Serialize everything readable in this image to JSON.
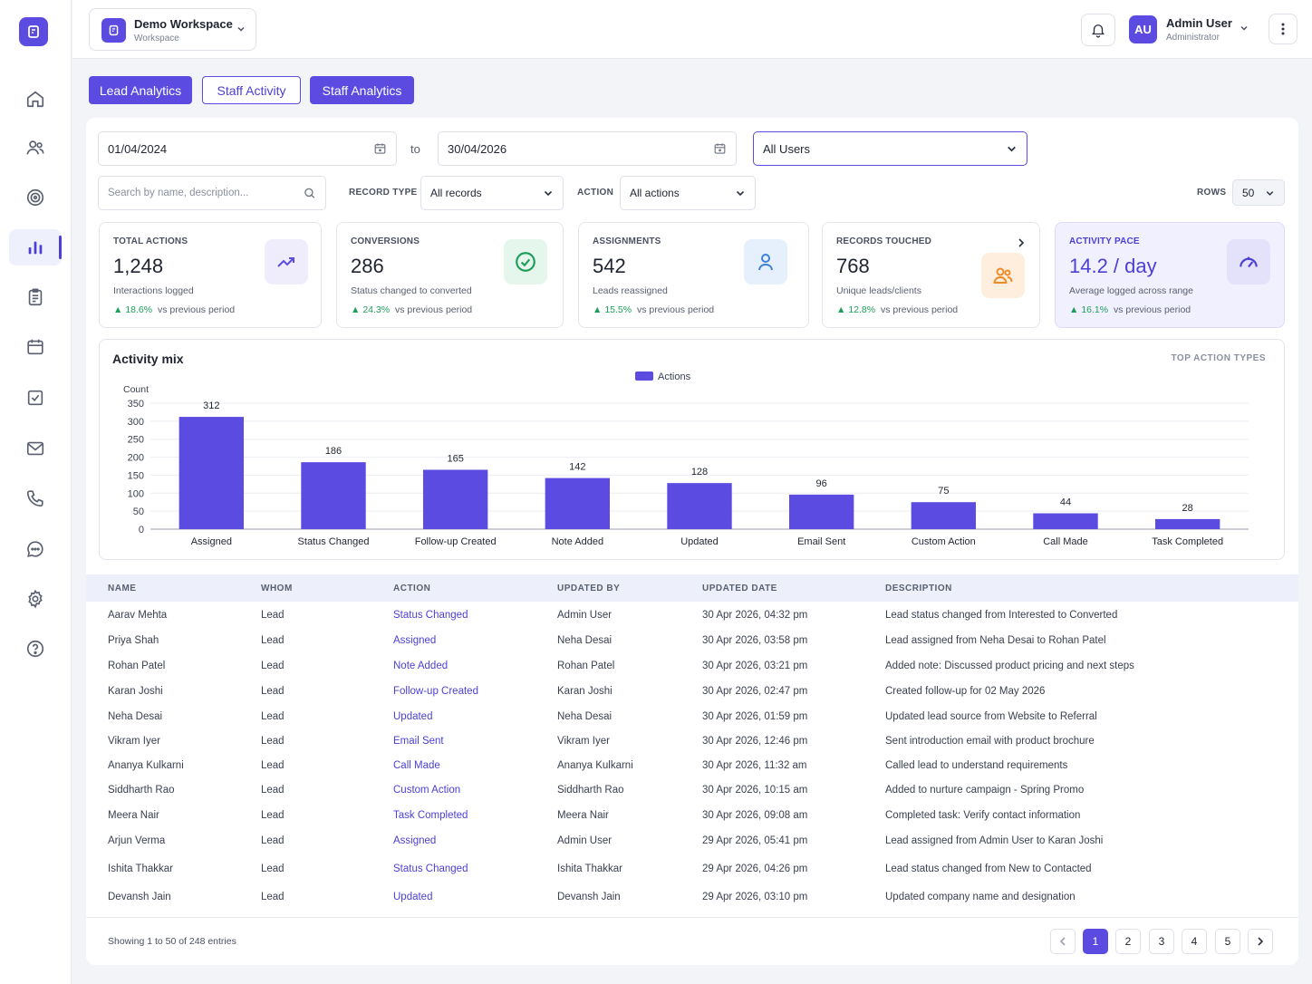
{
  "workspace": {
    "name": "Demo Workspace",
    "subtitle": "Workspace"
  },
  "user": {
    "initials": "AU",
    "name": "Admin User",
    "role": "Administrator"
  },
  "sidebar": {
    "items": [
      "home-icon",
      "users-icon",
      "target-icon",
      "analytics-icon",
      "clipboard-icon",
      "calendar-icon",
      "checkbox-icon",
      "mail-icon",
      "phone-icon",
      "chat-icon",
      "settings-icon",
      "help-icon"
    ],
    "active": "analytics-icon"
  },
  "tabs": [
    {
      "label": "Lead Analytics"
    },
    {
      "label": "Staff Activity"
    },
    {
      "label": "Staff Analytics"
    }
  ],
  "filters": {
    "date_from": "01/04/2024",
    "to_label": "to",
    "date_to": "30/04/2026",
    "user_select": "All Users",
    "search_placeholder": "Search by name, description...",
    "record_type_label": "RECORD TYPE",
    "record_type_value": "All records",
    "action_label": "ACTION",
    "action_value": "All actions",
    "rows_label": "ROWS",
    "rows_value": "50"
  },
  "cards": [
    {
      "title": "TOTAL ACTIONS",
      "value": "1,248",
      "sub": "Interactions logged",
      "delta": "18.6%",
      "delta_text": "vs previous period"
    },
    {
      "title": "CONVERSIONS",
      "value": "286",
      "sub": "Status changed to converted",
      "delta": "24.3%",
      "delta_text": "vs previous period"
    },
    {
      "title": "ASSIGNMENTS",
      "value": "542",
      "sub": "Leads reassigned",
      "delta": "15.5%",
      "delta_text": "vs previous period"
    },
    {
      "title": "RECORDS TOUCHED",
      "value": "768",
      "sub": "Unique leads/clients",
      "delta": "12.8%",
      "delta_text": "vs previous period"
    },
    {
      "title": "ACTIVITY PACE",
      "value": "14.2 / day",
      "sub": "Average logged across range",
      "delta": "16.1%",
      "delta_text": "vs previous period"
    }
  ],
  "colors": {
    "accent": "#5b4be0",
    "bar": "#5b4be0",
    "up": "#1f9e5a"
  },
  "chart_data": {
    "type": "bar",
    "title": "Activity mix",
    "corner_label": "TOP ACTION TYPES",
    "ylabel": "Count",
    "ylim": [
      0,
      350
    ],
    "yticks": [
      0,
      50,
      100,
      150,
      200,
      250,
      300,
      350
    ],
    "grid": true,
    "legend": "top-center",
    "categories": [
      "Assigned",
      "Status Changed",
      "Follow-up Created",
      "Note Added",
      "Updated",
      "Email Sent",
      "Custom Action",
      "Call Made",
      "Task Completed"
    ],
    "series": [
      {
        "name": "Actions",
        "values": [
          312,
          186,
          165,
          142,
          128,
          96,
          75,
          44,
          28
        ]
      }
    ]
  },
  "table": {
    "columns": [
      "NAME",
      "WHOM",
      "ACTION",
      "UPDATED BY",
      "UPDATED DATE",
      "DESCRIPTION"
    ],
    "rows": [
      [
        "Aarav Mehta",
        "Lead",
        "Status Changed",
        "Admin User",
        "30 Apr 2026, 04:32 pm",
        "Lead status changed from Interested to Converted"
      ],
      [
        "Priya Shah",
        "Lead",
        "Assigned",
        "Neha Desai",
        "30 Apr 2026, 03:58 pm",
        "Lead assigned from Neha Desai to Rohan Patel"
      ],
      [
        "Rohan Patel",
        "Lead",
        "Note Added",
        "Rohan Patel",
        "30 Apr 2026, 03:21 pm",
        "Added note: Discussed product pricing and next steps"
      ],
      [
        "Karan Joshi",
        "Lead",
        "Follow-up Created",
        "Karan Joshi",
        "30 Apr 2026, 02:47 pm",
        "Created follow-up for 02 May 2026"
      ],
      [
        "Neha Desai",
        "Lead",
        "Updated",
        "Neha Desai",
        "30 Apr 2026, 01:59 pm",
        "Updated lead source from Website to Referral"
      ],
      [
        "Vikram Iyer",
        "Lead",
        "Email Sent",
        "Vikram Iyer",
        "30 Apr 2026, 12:46 pm",
        "Sent introduction email with product brochure"
      ],
      [
        "Ananya Kulkarni",
        "Lead",
        "Call Made",
        "Ananya Kulkarni",
        "30 Apr 2026, 11:32 am",
        "Called lead to understand requirements"
      ],
      [
        "Siddharth Rao",
        "Lead",
        "Custom Action",
        "Siddharth Rao",
        "30 Apr 2026, 10:15 am",
        "Added to nurture campaign - Spring Promo"
      ],
      [
        "Meera Nair",
        "Lead",
        "Task Completed",
        "Meera Nair",
        "30 Apr 2026, 09:08 am",
        "Completed task: Verify contact information"
      ],
      [
        "Arjun Verma",
        "Lead",
        "Assigned",
        "Admin User",
        "29 Apr 2026, 05:41 pm",
        "Lead assigned from Admin User to Karan Joshi"
      ],
      [
        "Ishita Thakkar",
        "Lead",
        "Status Changed",
        "Ishita Thakkar",
        "29 Apr 2026, 04:26 pm",
        "Lead status changed from New to Contacted"
      ],
      [
        "Devansh Jain",
        "Lead",
        "Updated",
        "Devansh Jain",
        "29 Apr 2026, 03:10 pm",
        "Updated company name and designation"
      ]
    ]
  },
  "pagination": {
    "summary": "Showing 1 to 50 of 248 entries",
    "pages": [
      "1",
      "2",
      "3",
      "4",
      "5"
    ],
    "current": "1"
  }
}
